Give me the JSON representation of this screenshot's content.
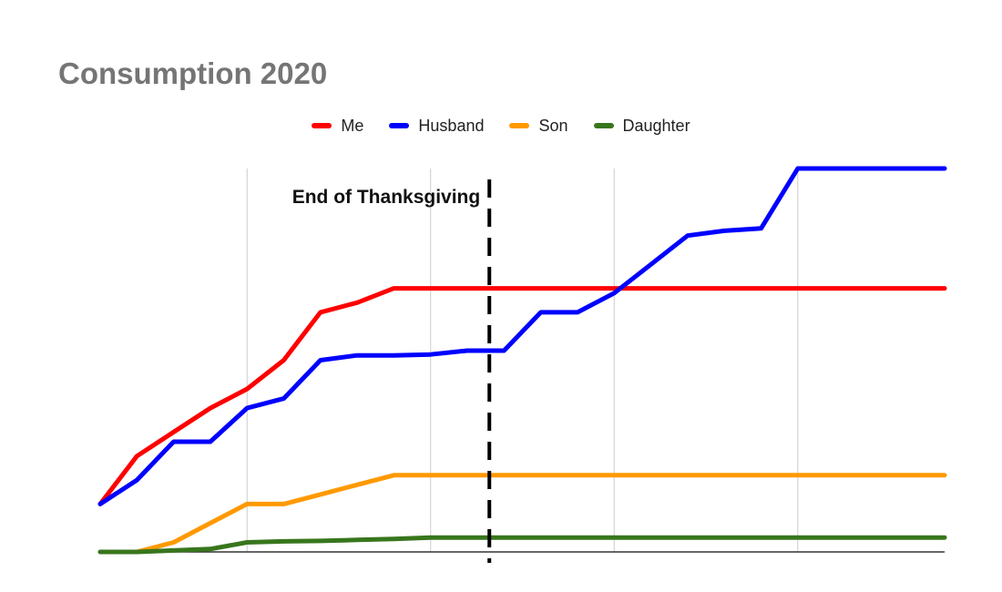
{
  "chart_data": {
    "type": "line",
    "title": "Consumption 2020",
    "xlabel": "",
    "ylabel": "",
    "x": [
      0,
      1,
      2,
      3,
      4,
      5,
      6,
      7,
      8,
      9,
      10,
      11,
      12,
      13,
      14,
      15,
      16,
      17,
      18,
      19,
      20,
      21,
      22,
      23
    ],
    "xlim": [
      0,
      23
    ],
    "ylim": [
      0,
      8
    ],
    "grid": {
      "vertical": true,
      "horizontal": false
    },
    "legend": "top-center",
    "series": [
      {
        "name": "Me",
        "color": "#ff0000",
        "values": [
          1,
          2,
          2.5,
          3,
          3.4,
          4,
          5,
          5.2,
          5.5,
          5.5,
          5.5,
          5.5,
          5.5,
          5.5,
          5.5,
          5.5,
          5.5,
          5.5,
          5.5,
          5.5,
          5.5,
          5.5,
          5.5,
          5.5
        ]
      },
      {
        "name": "Husband",
        "color": "#0000ff",
        "values": [
          1,
          1.5,
          2.3,
          2.3,
          3,
          3.2,
          4,
          4.1,
          4.1,
          4.12,
          4.2,
          4.2,
          5,
          5,
          5.4,
          6,
          6.6,
          6.7,
          6.75,
          8,
          8,
          8,
          8,
          8
        ]
      },
      {
        "name": "Son",
        "color": "#ff9900",
        "values": [
          0,
          0,
          0.2,
          0.6,
          1,
          1,
          1.2,
          1.4,
          1.6,
          1.6,
          1.6,
          1.6,
          1.6,
          1.6,
          1.6,
          1.6,
          1.6,
          1.6,
          1.6,
          1.6,
          1.6,
          1.6,
          1.6,
          1.6
        ]
      },
      {
        "name": "Daughter",
        "color": "#38761d",
        "values": [
          0,
          0,
          0.03,
          0.06,
          0.2,
          0.22,
          0.23,
          0.25,
          0.27,
          0.3,
          0.3,
          0.3,
          0.3,
          0.3,
          0.3,
          0.3,
          0.3,
          0.3,
          0.3,
          0.3,
          0.3,
          0.3,
          0.3,
          0.3
        ]
      }
    ],
    "annotations": [
      {
        "label": "End of Thanksgiving",
        "x": 10.6,
        "style": "dashed-vertical-line",
        "color": "#000000"
      }
    ]
  }
}
